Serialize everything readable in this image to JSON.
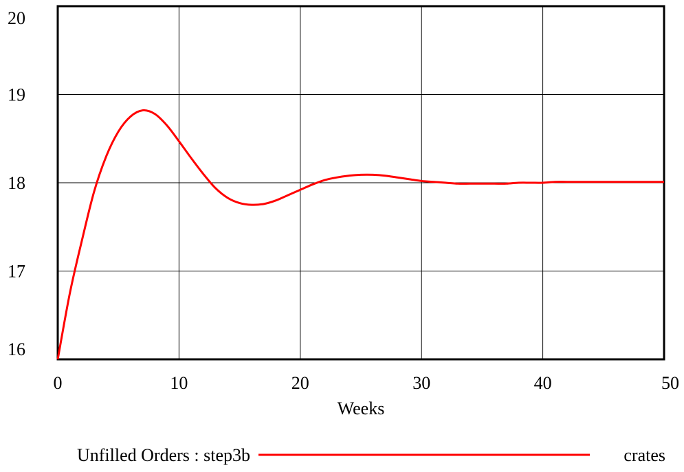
{
  "chart_data": {
    "type": "line",
    "xlabel": "Weeks",
    "ylabel": "",
    "xlim": [
      0,
      50
    ],
    "ylim": [
      16,
      20
    ],
    "x_ticks": [
      "0",
      "10",
      "20",
      "30",
      "40",
      "50"
    ],
    "y_ticks": [
      "16",
      "17",
      "18",
      "19",
      "20"
    ],
    "grid": true,
    "legend_position": "bottom",
    "series": [
      {
        "name": "Unfilled Orders : step3b",
        "unit": "crates",
        "color": "#ff0000",
        "x": [
          0,
          1,
          2,
          3,
          4,
          5,
          6,
          7,
          8,
          9,
          10,
          11,
          12,
          13,
          14,
          15,
          16,
          17,
          18,
          19,
          20,
          21,
          22,
          23,
          24,
          25,
          26,
          27,
          28,
          29,
          30,
          31,
          32,
          33,
          34,
          35,
          36,
          37,
          38,
          39,
          40,
          41,
          42,
          43,
          44,
          45,
          46,
          47,
          48,
          49,
          50
        ],
        "values": [
          16.0,
          16.75,
          17.35,
          17.9,
          18.3,
          18.58,
          18.75,
          18.82,
          18.78,
          18.65,
          18.47,
          18.28,
          18.1,
          17.94,
          17.83,
          17.77,
          17.75,
          17.76,
          17.8,
          17.86,
          17.92,
          17.98,
          18.03,
          18.06,
          18.08,
          18.09,
          18.09,
          18.08,
          18.06,
          18.04,
          18.02,
          18.01,
          18.0,
          17.99,
          17.99,
          17.99,
          17.99,
          17.99,
          18.0,
          18.0,
          18.0,
          18.01,
          18.01,
          18.01,
          18.01,
          18.01,
          18.01,
          18.01,
          18.01,
          18.01,
          18.01
        ]
      }
    ]
  }
}
